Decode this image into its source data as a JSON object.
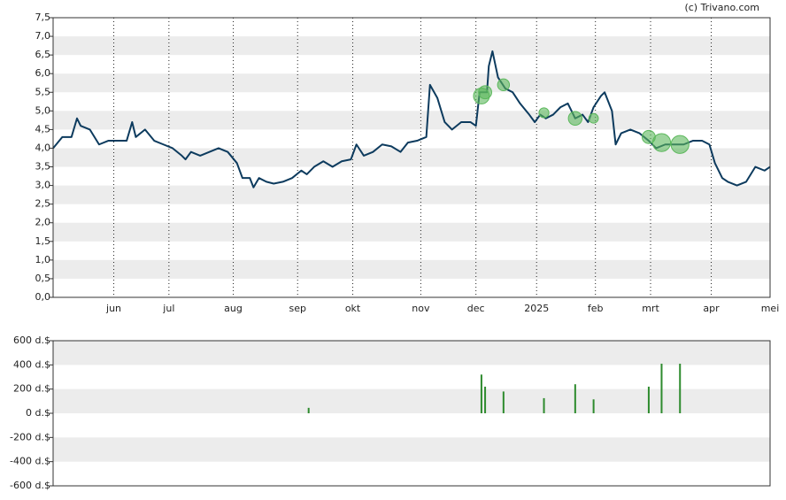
{
  "watermark": "(c) Trivano.com",
  "chart_data": [
    {
      "type": "line",
      "xlim": [
        0,
        390
      ],
      "xticks": [
        {
          "value": 33,
          "label": "jun"
        },
        {
          "value": 63,
          "label": "jul"
        },
        {
          "value": 98,
          "label": "aug"
        },
        {
          "value": 133,
          "label": "sep"
        },
        {
          "value": 163,
          "label": "okt"
        },
        {
          "value": 200,
          "label": "nov"
        },
        {
          "value": 230,
          "label": "dec"
        },
        {
          "value": 263,
          "label": "2025"
        },
        {
          "value": 295,
          "label": "feb"
        },
        {
          "value": 325,
          "label": "mrt"
        },
        {
          "value": 358,
          "label": "apr"
        },
        {
          "value": 390,
          "label": "mei"
        }
      ],
      "ylim": [
        0,
        7.5
      ],
      "yticks": [
        {
          "value": 0,
          "label": "0,0"
        },
        {
          "value": 0.5,
          "label": "0,5"
        },
        {
          "value": 1,
          "label": "1,0"
        },
        {
          "value": 1.5,
          "label": "1,5"
        },
        {
          "value": 2,
          "label": "2,0"
        },
        {
          "value": 2.5,
          "label": "2,5"
        },
        {
          "value": 3,
          "label": "3,0"
        },
        {
          "value": 3.5,
          "label": "3,5"
        },
        {
          "value": 4,
          "label": "4,0"
        },
        {
          "value": 4.5,
          "label": "4,5"
        },
        {
          "value": 5,
          "label": "5,0"
        },
        {
          "value": 5.5,
          "label": "5,5"
        },
        {
          "value": 6,
          "label": "6,0"
        },
        {
          "value": 6.5,
          "label": "6,5"
        },
        {
          "value": 7,
          "label": "7,0"
        },
        {
          "value": 7.5,
          "label": "7,5"
        }
      ],
      "grid": true,
      "series": [
        {
          "type": "line",
          "color": "#0d3b5e",
          "x": [
            0,
            5,
            10,
            13,
            15,
            20,
            25,
            30,
            35,
            40,
            43,
            45,
            50,
            55,
            60,
            65,
            70,
            72,
            75,
            80,
            85,
            90,
            95,
            100,
            103,
            107,
            109,
            112,
            116,
            120,
            125,
            130,
            135,
            138,
            142,
            147,
            152,
            157,
            162,
            165,
            169,
            174,
            179,
            184,
            189,
            193,
            198,
            203,
            205,
            209,
            213,
            217,
            222,
            227,
            230,
            232,
            236,
            237,
            239,
            242,
            246,
            250,
            254,
            259,
            262,
            265,
            268,
            272,
            276,
            280,
            284,
            288,
            291,
            294,
            298,
            300,
            304,
            306,
            309,
            314,
            319,
            324,
            328,
            333,
            338,
            343,
            348,
            353,
            357,
            360,
            364,
            367,
            372,
            377,
            382,
            387,
            390
          ],
          "values": [
            4.0,
            4.3,
            4.3,
            4.8,
            4.6,
            4.5,
            4.1,
            4.2,
            4.2,
            4.2,
            4.7,
            4.3,
            4.5,
            4.2,
            4.1,
            4.0,
            3.8,
            3.7,
            3.9,
            3.8,
            3.9,
            4.0,
            3.9,
            3.6,
            3.2,
            3.2,
            2.95,
            3.2,
            3.1,
            3.05,
            3.1,
            3.2,
            3.4,
            3.3,
            3.5,
            3.65,
            3.5,
            3.65,
            3.7,
            4.1,
            3.8,
            3.9,
            4.1,
            4.05,
            3.9,
            4.15,
            4.2,
            4.3,
            5.7,
            5.35,
            4.7,
            4.5,
            4.7,
            4.7,
            4.6,
            5.5,
            5.5,
            6.2,
            6.6,
            5.9,
            5.6,
            5.5,
            5.2,
            4.9,
            4.7,
            4.9,
            4.8,
            4.9,
            5.1,
            5.2,
            4.8,
            4.9,
            4.7,
            5.1,
            5.4,
            5.5,
            5.0,
            4.1,
            4.4,
            4.5,
            4.4,
            4.2,
            4.0,
            4.1,
            4.1,
            4.1,
            4.2,
            4.2,
            4.1,
            3.6,
            3.2,
            3.1,
            3.0,
            3.1,
            3.5,
            3.4,
            3.5
          ]
        },
        {
          "type": "scatter",
          "color": "#5cb85c",
          "x": [
            233,
            235,
            245,
            267,
            284,
            294,
            324,
            331,
            341
          ],
          "values": [
            5.4,
            5.5,
            5.7,
            4.95,
            4.8,
            4.8,
            4.3,
            4.15,
            4.1
          ],
          "sizes": [
            320,
            220,
            180,
            125,
            240,
            115,
            220,
            410,
            410
          ]
        }
      ]
    },
    {
      "type": "bar",
      "xlim": [
        0,
        390
      ],
      "ylim": [
        -600,
        600
      ],
      "yticks": [
        {
          "value": -600,
          "label": "-600 d.$"
        },
        {
          "value": -400,
          "label": "-400 d.$"
        },
        {
          "value": -200,
          "label": "-200 d.$"
        },
        {
          "value": 0,
          "label": "0 d.$"
        },
        {
          "value": 200,
          "label": "200 d.$"
        },
        {
          "value": 400,
          "label": "400 d.$"
        },
        {
          "value": 600,
          "label": "600 d.$"
        }
      ],
      "grid": true,
      "color": "#2e8b2e",
      "x": [
        139,
        233,
        235,
        245,
        267,
        284,
        294,
        324,
        331,
        341
      ],
      "values": [
        45,
        320,
        220,
        180,
        125,
        240,
        115,
        220,
        410,
        410
      ]
    }
  ]
}
